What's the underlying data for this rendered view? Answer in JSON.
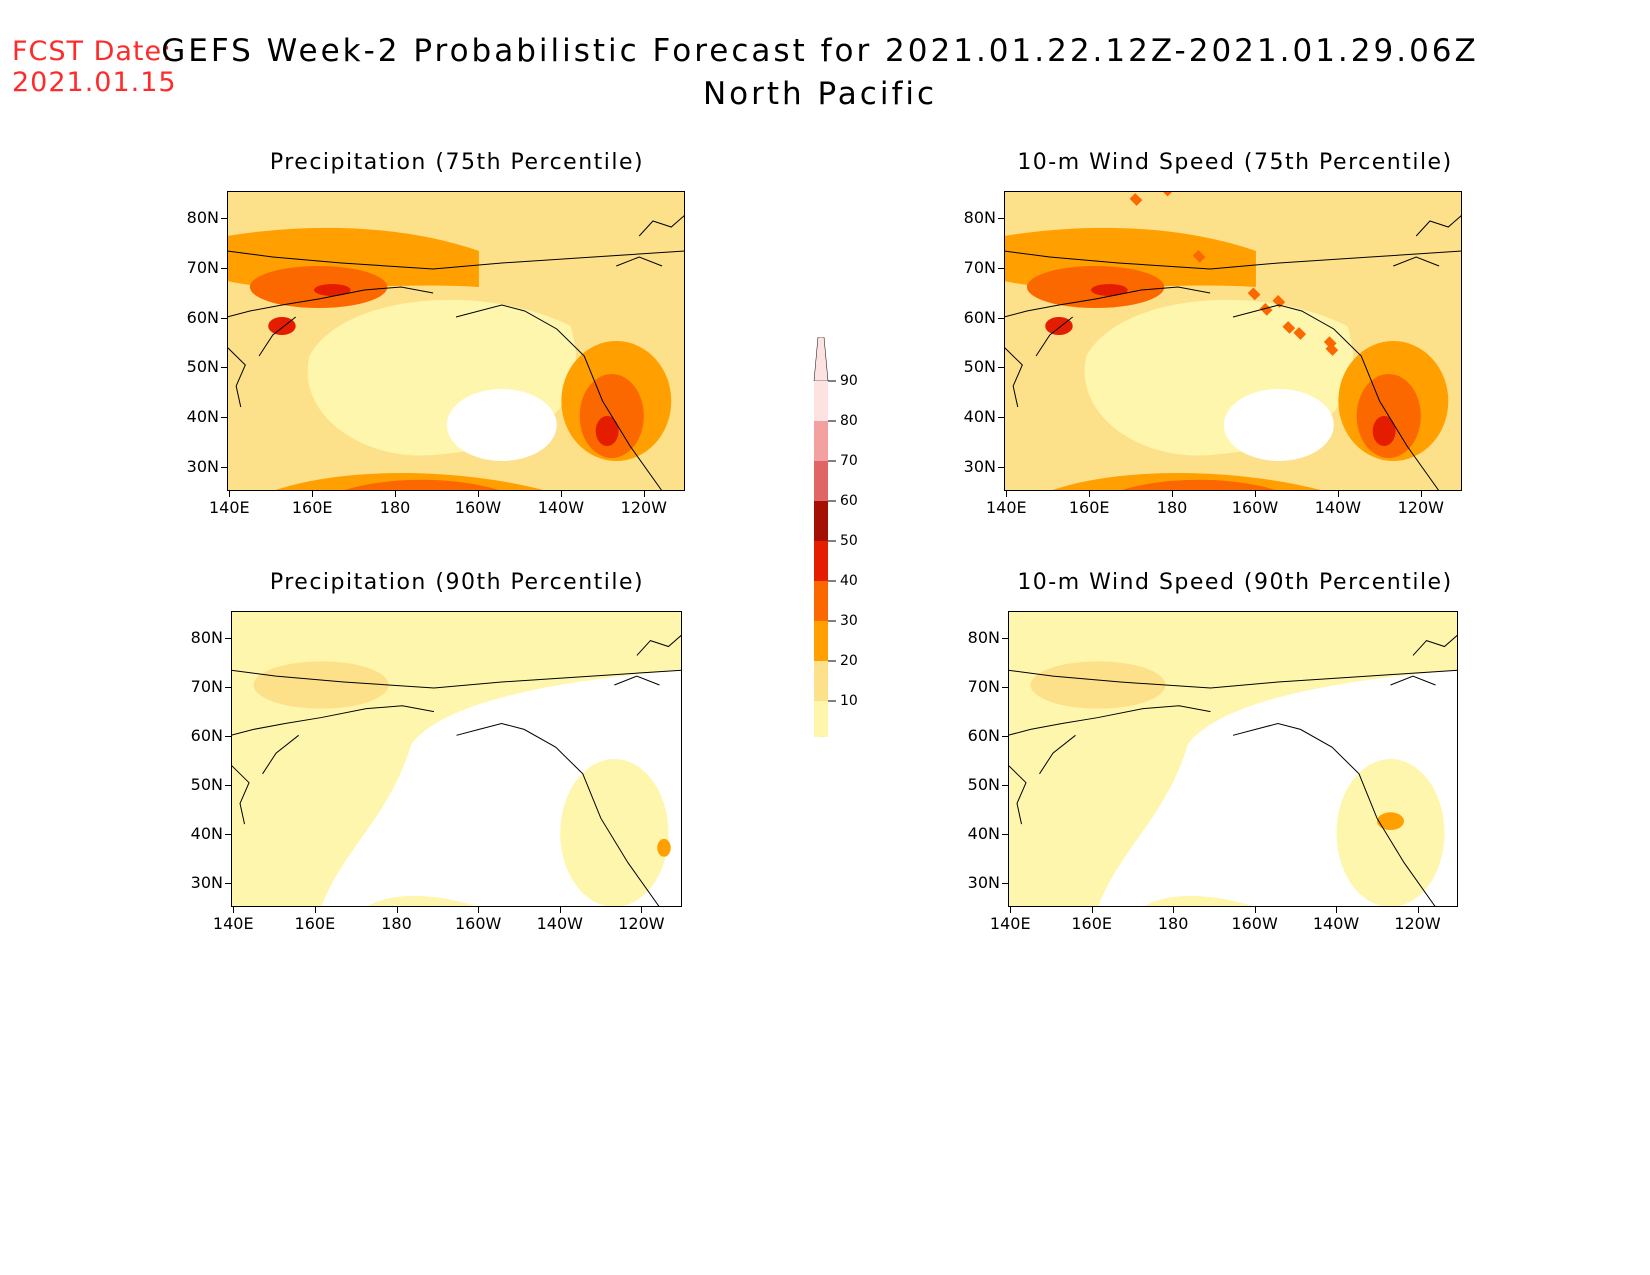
{
  "header": {
    "fcst_label": "FCST Date:",
    "fcst_date": "2021.01.15",
    "title_line1": "GEFS Week-2 Probabilistic Forecast for 2021.01.22.12Z-2021.01.29.06Z",
    "title_line2": "North Pacific"
  },
  "axes": {
    "lat_labels": [
      "80N",
      "70N",
      "60N",
      "50N",
      "40N",
      "30N"
    ],
    "lon_labels": [
      "140E",
      "160E",
      "180",
      "160W",
      "140W",
      "120W"
    ]
  },
  "panels": [
    {
      "title": "Precipitation (75th Percentile)",
      "level": "high"
    },
    {
      "title": "10-m Wind Speed (75th Percentile)",
      "level": "high"
    },
    {
      "title": "Precipitation (90th Percentile)",
      "level": "low"
    },
    {
      "title": "10-m Wind Speed (90th Percentile)",
      "level": "low"
    }
  ],
  "colorbar": {
    "labels": [
      "90",
      "80",
      "70",
      "60",
      "50",
      "40",
      "30",
      "20",
      "10"
    ],
    "colors": [
      "#fde2e2",
      "#f2a0a0",
      "#e06666",
      "#a51005",
      "#e41d00",
      "#fc6800",
      "#ffa000",
      "#fde08a",
      "#fff6ae"
    ]
  }
}
